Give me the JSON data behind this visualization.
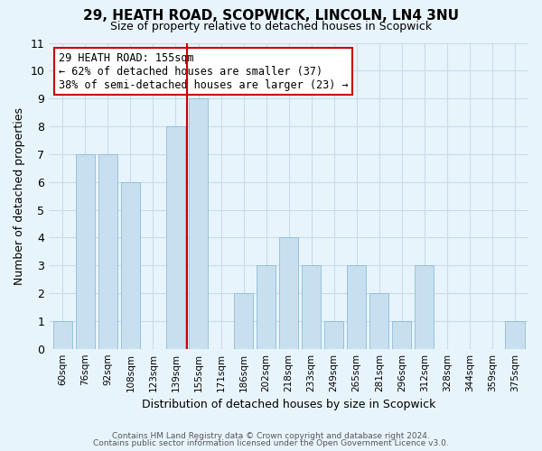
{
  "title": "29, HEATH ROAD, SCOPWICK, LINCOLN, LN4 3NU",
  "subtitle": "Size of property relative to detached houses in Scopwick",
  "xlabel": "Distribution of detached houses by size in Scopwick",
  "ylabel": "Number of detached properties",
  "bar_labels": [
    "60sqm",
    "76sqm",
    "92sqm",
    "108sqm",
    "123sqm",
    "139sqm",
    "155sqm",
    "171sqm",
    "186sqm",
    "202sqm",
    "218sqm",
    "233sqm",
    "249sqm",
    "265sqm",
    "281sqm",
    "296sqm",
    "312sqm",
    "328sqm",
    "344sqm",
    "359sqm",
    "375sqm"
  ],
  "bar_values": [
    1,
    7,
    7,
    6,
    0,
    8,
    9,
    0,
    2,
    3,
    4,
    3,
    1,
    3,
    2,
    1,
    3,
    0,
    0,
    0,
    1
  ],
  "red_line_x": 6.5,
  "bar_color": "#c8dff0",
  "bar_edge_color": "#7fb3d3",
  "highlight_line_color": "#cc0000",
  "ylim": [
    0,
    11
  ],
  "yticks": [
    0,
    1,
    2,
    3,
    4,
    5,
    6,
    7,
    8,
    9,
    10,
    11
  ],
  "grid_color": "#c8dce8",
  "background_color": "#e8f4fc",
  "annotation_title": "29 HEATH ROAD: 155sqm",
  "annotation_line1": "← 62% of detached houses are smaller (37)",
  "annotation_line2": "38% of semi-detached houses are larger (23) →",
  "annotation_box_edge": "#cc0000",
  "footer_line1": "Contains HM Land Registry data © Crown copyright and database right 2024.",
  "footer_line2": "Contains public sector information licensed under the Open Government Licence v3.0."
}
